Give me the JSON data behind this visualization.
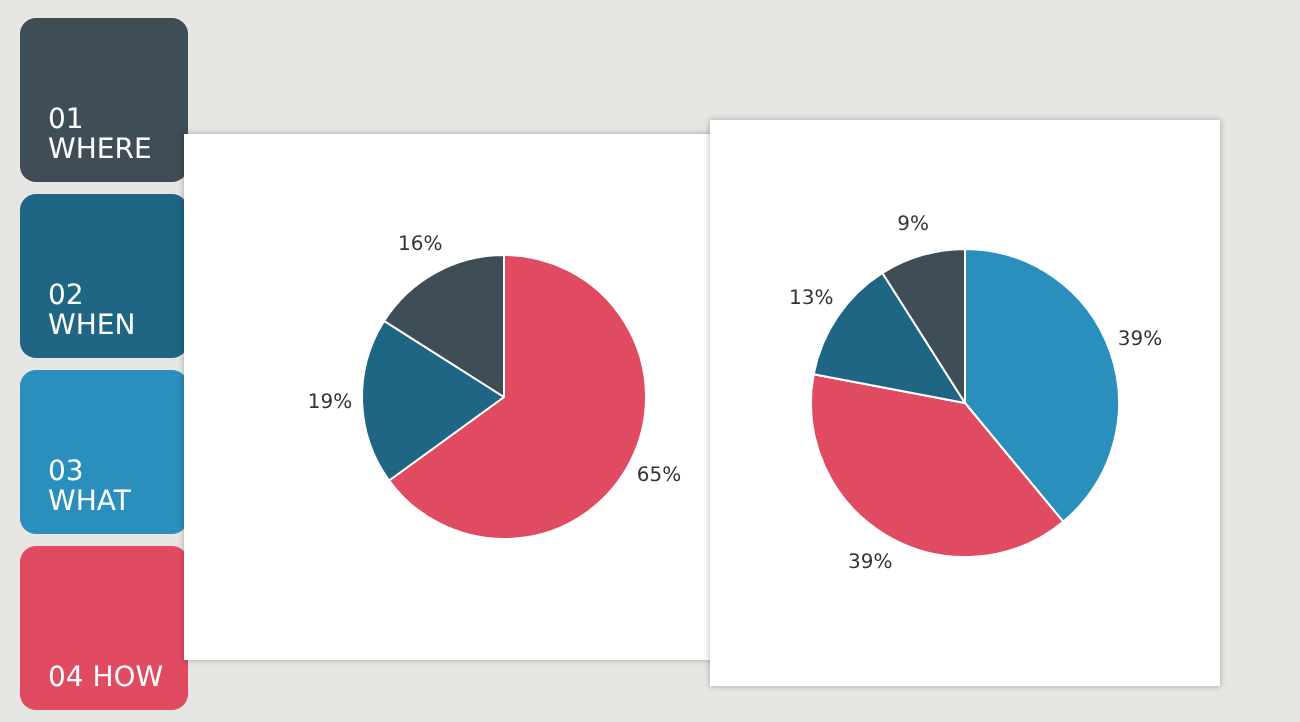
{
  "chart_data": [
    {
      "type": "other",
      "annotations": [
        "01 WHERE",
        "02 WHEN",
        "03 WHAT",
        "04 HOW"
      ],
      "colors": [
        "#3f4d57",
        "#1f6584",
        "#2b8fbd",
        "#e14b62"
      ]
    },
    {
      "type": "pie",
      "categories": [
        null,
        null,
        null
      ],
      "values": [
        65,
        19,
        16
      ],
      "colors": [
        "#e14b62",
        "#1f6584",
        "#3f4d57"
      ],
      "value_labels": [
        "65%",
        "19%",
        "16%"
      ]
    },
    {
      "type": "pie",
      "categories": [
        null,
        null,
        null,
        null
      ],
      "values": [
        39,
        39,
        13,
        9
      ],
      "colors": [
        "#2b8fbd",
        "#e14b62",
        "#1f6584",
        "#3f4d57"
      ],
      "value_labels": [
        "39%",
        "39%",
        "13%",
        "9%"
      ]
    }
  ]
}
